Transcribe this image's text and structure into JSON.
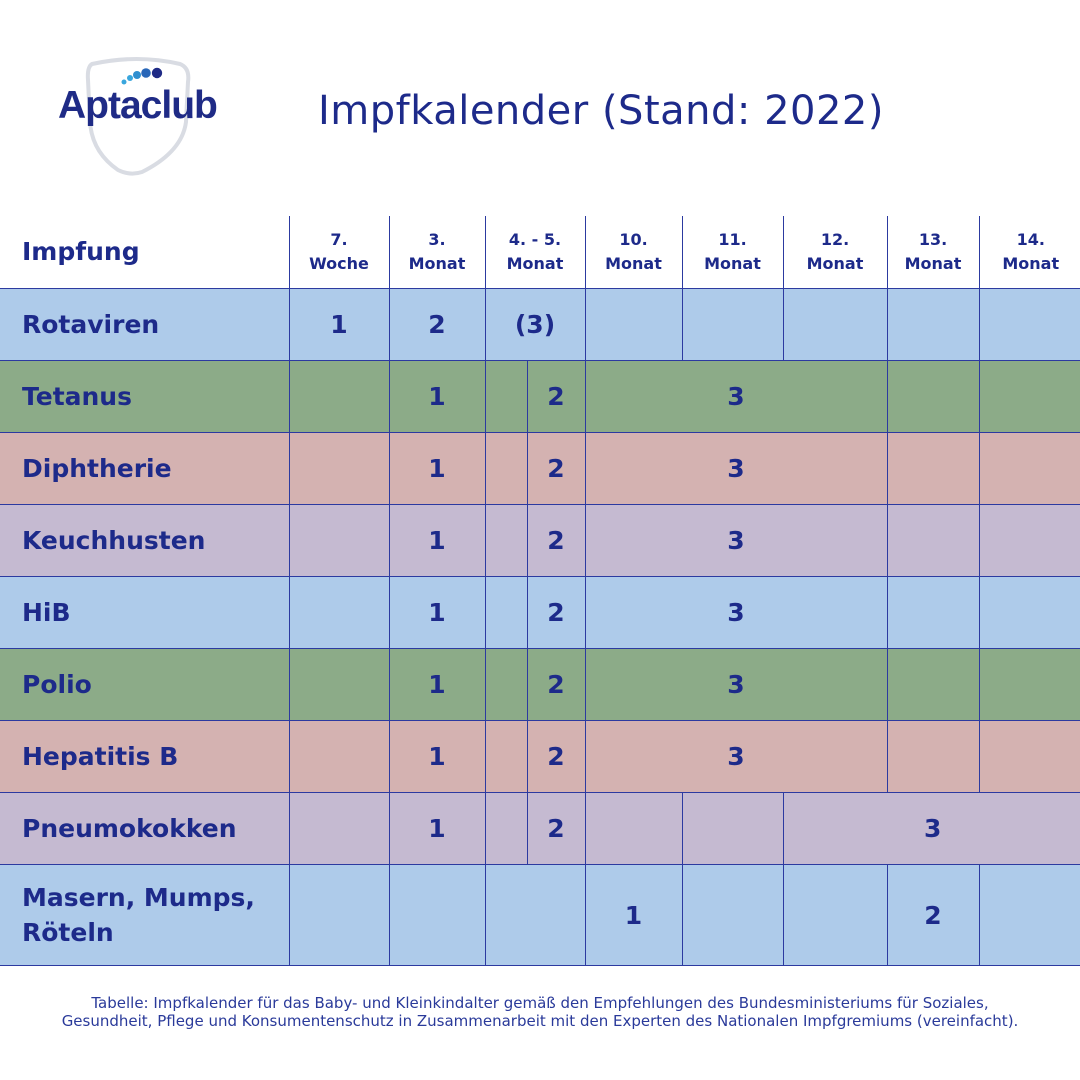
{
  "logo": {
    "text": "Aptaclub",
    "icon": "shield-dots-logo"
  },
  "title": "Impfkalender (Stand: 2022)",
  "table": {
    "header_first": "Impfung",
    "columns": [
      [
        "7.",
        "Woche"
      ],
      [
        "3.",
        "Monat"
      ],
      [
        "4. - 5.",
        "Monat"
      ],
      [
        "10.",
        "Monat"
      ],
      [
        "11.",
        "Monat"
      ],
      [
        "12.",
        "Monat"
      ],
      [
        "13.",
        "Monat"
      ],
      [
        "14.",
        "Monat"
      ]
    ],
    "rows": [
      {
        "name": "Rotaviren",
        "color": "#aecbea",
        "doses": [
          "1",
          "2",
          "(3)"
        ]
      },
      {
        "name": "Tetanus",
        "color": "#8cab88",
        "doses": [
          "1",
          "2",
          "3"
        ]
      },
      {
        "name": "Diphtherie",
        "color": "#d4b2b1",
        "doses": [
          "1",
          "2",
          "3"
        ]
      },
      {
        "name": "Keuchhusten",
        "color": "#c5bad1",
        "doses": [
          "1",
          "2",
          "3"
        ]
      },
      {
        "name": "HiB",
        "color": "#aecbea",
        "doses": [
          "1",
          "2",
          "3"
        ]
      },
      {
        "name": "Polio",
        "color": "#8cab88",
        "doses": [
          "1",
          "2",
          "3"
        ]
      },
      {
        "name": "Hepatitis B",
        "color": "#d4b2b1",
        "doses": [
          "1",
          "2",
          "3"
        ]
      },
      {
        "name": "Pneumokokken",
        "color": "#c5bad1",
        "doses": [
          "1",
          "2",
          "3"
        ]
      },
      {
        "name": "Masern, Mumps, Röteln",
        "color": "#aecbea",
        "doses": [
          "1",
          "2"
        ]
      }
    ]
  },
  "footnote": "Tabelle: Impfkalender für das Baby- und Kleinkindalter gemäß den Empfehlungen des Bundesministeriums für Soziales, Gesundheit, Pflege und Konsumentenschutz in Zusammenarbeit mit den Experten des Nationalen Impfgremiums (vereinfacht).",
  "colors": {
    "text": "#1d2a8a",
    "grid": "#2c3aa0",
    "blue": "#aecbea",
    "green": "#8cab88",
    "pink": "#d4b2b1",
    "purple": "#c5bad1"
  }
}
